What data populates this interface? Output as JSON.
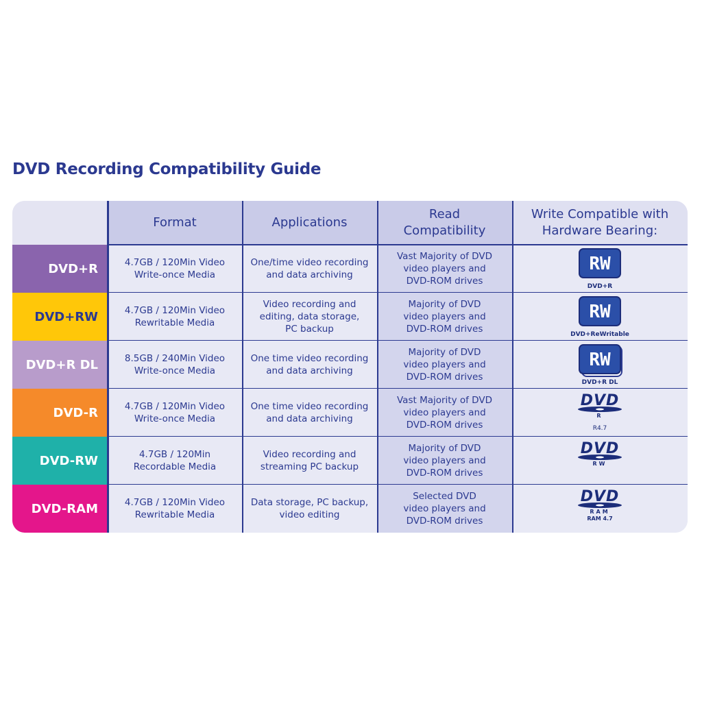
{
  "title": "DVD Recording Compatibility Guide",
  "table": {
    "headers": [
      "Format",
      "Applications",
      "Read\nCompatibility",
      "Write Compatible with\nHardware Bearing:"
    ],
    "rows": [
      {
        "label": "DVD+R",
        "format": "4.7GB / 120Min Video\nWrite-once Media",
        "applications": "One/time video recording\nand data archiving",
        "read": "Vast Majority of DVD\nvideo players and\nDVD-ROM drives",
        "logo": {
          "mark": "RW",
          "caption": "DVD+R"
        }
      },
      {
        "label": "DVD+RW",
        "format": "4.7GB / 120Min Video\nRewritable Media",
        "applications": "Video recording and\nediting, data storage,\nPC backup",
        "read": "Majority of DVD\nvideo players and\nDVD-ROM drives",
        "logo": {
          "mark": "RW",
          "caption": "DVD+ReWritable"
        }
      },
      {
        "label": "DVD+R DL",
        "format": "8.5GB / 240Min Video\nWrite-once Media",
        "applications": "One time video recording\nand data archiving",
        "read": "Majority of DVD\nvideo players and\nDVD-ROM drives",
        "logo": {
          "mark": "RW",
          "caption": "DVD+R DL"
        }
      },
      {
        "label": "DVD-R",
        "format": "4.7GB / 120Min Video\nWrite-once Media",
        "applications": "One time video recording\nand data archiving",
        "read": "Vast Majority of DVD\nvideo players and\nDVD-ROM drives",
        "logo": {
          "mark": "DVD",
          "sub": "R",
          "note": "R4.7"
        }
      },
      {
        "label": "DVD-RW",
        "format": "4.7GB / 120Min\nRecordable Media",
        "applications": "Video recording and\nstreaming PC backup",
        "read": "Majority of DVD\nvideo players and\nDVD-ROM drives",
        "logo": {
          "mark": "DVD",
          "sub": "RW"
        }
      },
      {
        "label": "DVD-RAM",
        "format": "4.7GB / 120Min Video\nRewritable Media",
        "applications": "Data storage, PC backup,\nvideo editing",
        "read": "Selected DVD\nvideo players and\nDVD-ROM drives",
        "logo": {
          "mark": "DVD",
          "sub": "RAM",
          "note": "RAM 4.7"
        }
      }
    ]
  }
}
